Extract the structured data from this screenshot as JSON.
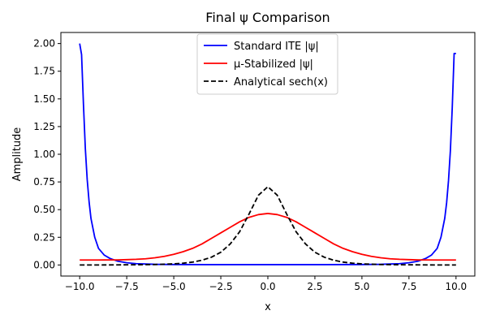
{
  "chart_data": {
    "type": "line",
    "title": "Final ψ Comparison",
    "xlabel": "x",
    "ylabel": "Amplitude",
    "xlim": [
      -11.0,
      11.0
    ],
    "ylim": [
      -0.1,
      2.1
    ],
    "xticks": [
      -10.0,
      -7.5,
      -5.0,
      -2.5,
      0.0,
      2.5,
      5.0,
      7.5,
      10.0
    ],
    "xtick_labels": [
      "−10.0",
      "−7.5",
      "−5.0",
      "−2.5",
      "0.0",
      "2.5",
      "5.0",
      "7.5",
      "10.0"
    ],
    "yticks": [
      0.0,
      0.25,
      0.5,
      0.75,
      1.0,
      1.25,
      1.5,
      1.75,
      2.0
    ],
    "ytick_labels": [
      "0.00",
      "0.25",
      "0.50",
      "0.75",
      "1.00",
      "1.25",
      "1.50",
      "1.75",
      "2.00"
    ],
    "grid": false,
    "legend_position": "top-center",
    "series": [
      {
        "name": "Standard ITE |ψ|",
        "color": "#0000ff",
        "style": "solid",
        "x": [
          -10.0,
          -9.9,
          -9.8,
          -9.7,
          -9.6,
          -9.5,
          -9.4,
          -9.2,
          -9.0,
          -8.7,
          -8.4,
          -8.0,
          -7.5,
          -7.0,
          -6.0,
          -5.0,
          -3.0,
          0.0,
          3.0,
          5.0,
          6.0,
          7.0,
          7.5,
          8.0,
          8.4,
          8.7,
          9.0,
          9.2,
          9.4,
          9.5,
          9.6,
          9.7,
          9.8,
          9.9,
          10.0
        ],
        "y": [
          2.0,
          1.9,
          1.45,
          1.05,
          0.77,
          0.57,
          0.42,
          0.25,
          0.15,
          0.09,
          0.06,
          0.035,
          0.02,
          0.012,
          0.006,
          0.004,
          0.003,
          0.003,
          0.003,
          0.004,
          0.006,
          0.012,
          0.02,
          0.035,
          0.06,
          0.09,
          0.15,
          0.25,
          0.42,
          0.56,
          0.76,
          1.03,
          1.42,
          1.91,
          1.91
        ]
      },
      {
        "name": "μ-Stabilized |ψ|",
        "color": "#ff0000",
        "style": "solid",
        "x": [
          -10.0,
          -9.0,
          -8.0,
          -7.5,
          -7.0,
          -6.5,
          -6.0,
          -5.5,
          -5.0,
          -4.5,
          -4.0,
          -3.5,
          -3.0,
          -2.5,
          -2.0,
          -1.5,
          -1.0,
          -0.5,
          0.0,
          0.5,
          1.0,
          1.5,
          2.0,
          2.5,
          3.0,
          3.5,
          4.0,
          4.5,
          5.0,
          5.5,
          6.0,
          6.5,
          7.0,
          7.5,
          8.0,
          9.0,
          10.0
        ],
        "y": [
          0.045,
          0.045,
          0.046,
          0.048,
          0.051,
          0.056,
          0.065,
          0.078,
          0.096,
          0.12,
          0.15,
          0.19,
          0.24,
          0.29,
          0.34,
          0.39,
          0.43,
          0.455,
          0.465,
          0.455,
          0.43,
          0.39,
          0.34,
          0.29,
          0.24,
          0.19,
          0.15,
          0.12,
          0.096,
          0.078,
          0.065,
          0.056,
          0.051,
          0.048,
          0.046,
          0.045,
          0.045
        ]
      },
      {
        "name": "Analytical sech(x)",
        "color": "#000000",
        "style": "dashed",
        "x": [
          -10.0,
          -9.0,
          -8.0,
          -7.0,
          -6.0,
          -5.0,
          -4.5,
          -4.0,
          -3.5,
          -3.0,
          -2.5,
          -2.0,
          -1.5,
          -1.0,
          -0.5,
          0.0,
          0.5,
          1.0,
          1.5,
          2.0,
          2.5,
          3.0,
          3.5,
          4.0,
          4.5,
          5.0,
          6.0,
          7.0,
          8.0,
          9.0,
          10.0
        ],
        "y": [
          0.0,
          0.0,
          0.001,
          0.002,
          0.004,
          0.01,
          0.016,
          0.026,
          0.043,
          0.07,
          0.115,
          0.19,
          0.3,
          0.46,
          0.63,
          0.707,
          0.63,
          0.46,
          0.3,
          0.19,
          0.115,
          0.07,
          0.043,
          0.026,
          0.016,
          0.01,
          0.004,
          0.002,
          0.001,
          0.0,
          0.0
        ]
      }
    ]
  }
}
